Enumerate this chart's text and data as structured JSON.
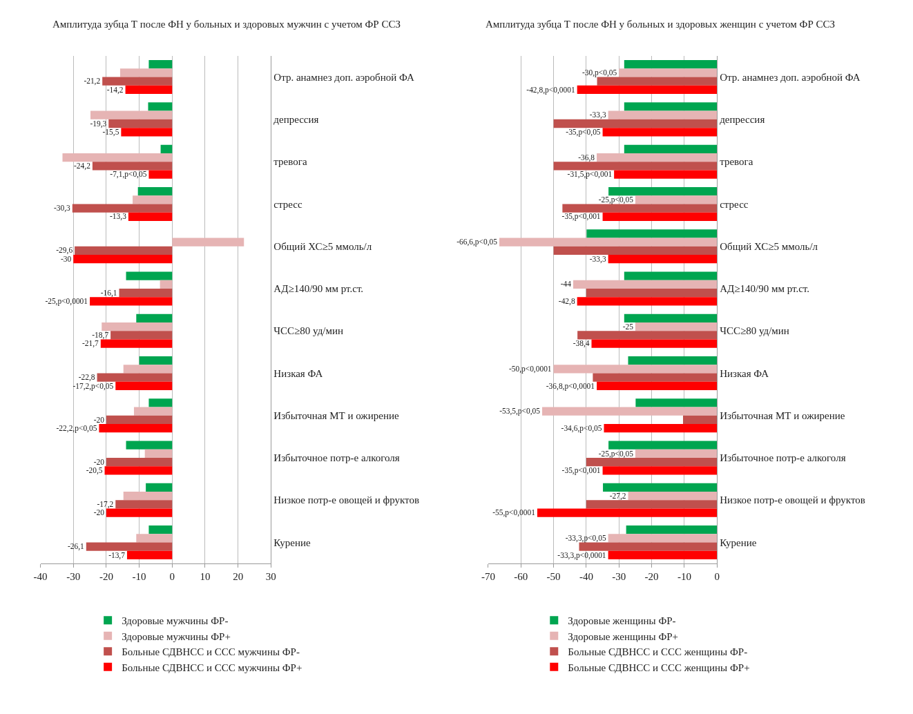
{
  "chart_data": [
    {
      "type": "bar",
      "orientation": "horizontal",
      "title": "Амплитуда зубца Т после ФН у больных и здоровых мужчин с учетом ФР ССЗ",
      "categories": [
        "Отр. анамнез доп. аэробной ФА",
        "депрессия",
        "тревога",
        "стресс",
        "Общий ХС≥5 ммоль/л",
        "АД≥140/90 мм рт.ст.",
        "ЧСС≥80 уд/мин",
        "Низкая ФА",
        "Избыточная МТ и ожирение",
        "Избыточное потр-е алкоголя",
        "Низкое потр-е овощей и фруктов",
        "Курение"
      ],
      "series": [
        {
          "name": "Здоровые мужчины ФР-",
          "color": "#00a550",
          "values": [
            -7.1,
            -7.3,
            -3.5,
            -10.4,
            0,
            -14,
            -10.9,
            -10,
            -7.1,
            -14,
            -8,
            -7.1
          ]
        },
        {
          "name": "Здоровые мужчины ФР+",
          "color": "#e6b4b4",
          "values": [
            -15.8,
            -24.8,
            -33.3,
            -12,
            21.8,
            -3.7,
            -21.4,
            -14.8,
            -11.6,
            -8.3,
            -14.8,
            -10.9
          ]
        },
        {
          "name": "Больные СДВНСС и ССС мужчины ФР-",
          "color": "#c0504d",
          "values": [
            -21.2,
            -19.3,
            -24.2,
            -30.3,
            -29.6,
            -16.1,
            -18.7,
            -22.8,
            -20,
            -20,
            -17.2,
            -26.1
          ],
          "value_labels": [
            "-21,2",
            "-19,3",
            "-24,2",
            "-30,3",
            "-29,6",
            "-16,1",
            "-18,7",
            "-22,8",
            "-20",
            "-20",
            "-17,2",
            "-26,1"
          ]
        },
        {
          "name": "Больные СДВНСС и ССС мужчины ФР+",
          "color": "#ff0000",
          "values": [
            -14.2,
            -15.5,
            -7.1,
            -13.3,
            -30,
            -25,
            -21.7,
            -17.2,
            -22.2,
            -20.5,
            -20,
            -13.7
          ],
          "value_labels": [
            "-14,2",
            "-15,5",
            "-7,1,p<0,05",
            "-13,3",
            "-30",
            "-25,p<0,0001",
            "-21,7",
            "-17,2,p<0,05",
            "-22,2,p<0,05",
            "-20,5",
            "-20",
            "-13,7"
          ]
        }
      ],
      "xlim": [
        -40,
        30
      ],
      "xticks": [
        -40,
        -30,
        -20,
        -10,
        0,
        10,
        20,
        30
      ],
      "grid": "x",
      "legend": "bottom"
    },
    {
      "type": "bar",
      "orientation": "horizontal",
      "title": "Амплитуда зубца Т после ФН у больных и здоровых женщин с учетом ФР ССЗ",
      "categories": [
        "Отр. анамнез доп. аэробной ФА",
        "депрессия",
        "тревога",
        "стресс",
        "Общий ХС≥5 ммоль/л",
        "АД≥140/90 мм рт.ст.",
        "ЧСС≥80 уд/мин",
        "Низкая ФА",
        "Избыточная МТ и ожирение",
        "Избыточное потр-е алкоголя",
        "Низкое потр-е овощей и фруктов",
        "Курение"
      ],
      "series": [
        {
          "name": "Здоровые женщины ФР-",
          "color": "#00a550",
          "values": [
            -28.4,
            -28.4,
            -28.4,
            -33.2,
            -39.9,
            -28.4,
            -28.4,
            -27.2,
            -24.9,
            -33.2,
            -34.9,
            -27.8
          ]
        },
        {
          "name": "Здоровые женщины ФР+",
          "color": "#e6b4b4",
          "values": [
            -30,
            -33.3,
            -36.8,
            -25,
            -66.6,
            -44,
            -25,
            -50,
            -53.5,
            -25,
            -27.2,
            -33.3
          ],
          "value_labels": [
            "-30,p<0,05",
            "-33,3",
            "-36,8",
            "-25,p<0,05",
            "-66,6,p<0,05",
            "-44",
            "-25",
            "-50,p<0,0001",
            "-53,5,p<0,05",
            "-25,p<0,05",
            "-27,2",
            "-33,3,p<0,05"
          ]
        },
        {
          "name": "Больные СДВНСС и ССС женщины ФР-",
          "color": "#c0504d",
          "values": [
            -36.7,
            -50,
            -50,
            -47.3,
            -50,
            -40,
            -42.7,
            -38,
            -10.4,
            -40,
            -40,
            -42.2
          ]
        },
        {
          "name": "Больные СДВНСС и ССС женщины ФР+",
          "color": "#ff0000",
          "values": [
            -42.8,
            -35,
            -31.5,
            -35,
            -33.3,
            -42.8,
            -38.4,
            -36.8,
            -34.6,
            -35,
            -55,
            -33.3
          ],
          "value_labels": [
            "-42,8,p<0,0001",
            "-35,p<0,05",
            "-31,5,p<0,001",
            "-35,p<0,001",
            "-33,3",
            "-42,8",
            "-38,4",
            "-36,8,p<0,0001",
            "-34,6,p<0,05",
            "-35,p<0,001",
            "-55,p<0,0001",
            "-33,3,p<0,0001"
          ]
        }
      ],
      "xlim": [
        -70,
        0
      ],
      "xticks": [
        -70,
        -60,
        -50,
        -40,
        -30,
        -20,
        -10,
        0
      ],
      "grid": "x",
      "legend": "bottom"
    }
  ]
}
